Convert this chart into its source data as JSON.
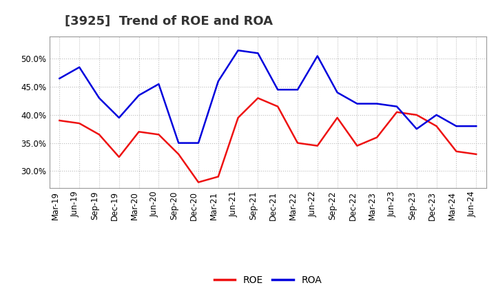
{
  "title": "[3925]  Trend of ROE and ROA",
  "labels": [
    "Mar-19",
    "Jun-19",
    "Sep-19",
    "Dec-19",
    "Mar-20",
    "Jun-20",
    "Sep-20",
    "Dec-20",
    "Mar-21",
    "Jun-21",
    "Sep-21",
    "Dec-21",
    "Mar-22",
    "Jun-22",
    "Sep-22",
    "Dec-22",
    "Mar-23",
    "Jun-23",
    "Sep-23",
    "Dec-23",
    "Mar-24",
    "Jun-24"
  ],
  "ROE": [
    39.0,
    38.5,
    36.5,
    32.5,
    37.0,
    36.5,
    33.0,
    28.0,
    29.0,
    39.5,
    43.0,
    41.5,
    35.0,
    34.5,
    39.5,
    34.5,
    36.0,
    40.5,
    40.0,
    38.0,
    33.5,
    33.0
  ],
  "ROA": [
    46.5,
    48.5,
    43.0,
    39.5,
    43.5,
    45.5,
    35.0,
    35.0,
    46.0,
    51.5,
    51.0,
    44.5,
    44.5,
    50.5,
    44.0,
    42.0,
    42.0,
    41.5,
    37.5,
    40.0,
    38.0,
    38.0
  ],
  "roe_color": "#ee1111",
  "roa_color": "#0000dd",
  "ylim": [
    27.0,
    54.0
  ],
  "yticks": [
    30.0,
    35.0,
    40.0,
    45.0,
    50.0
  ],
  "background_color": "#ffffff",
  "grid_color": "#bbbbbb",
  "title_fontsize": 13,
  "label_fontsize": 8.5,
  "legend_fontsize": 10,
  "linewidth": 1.8
}
